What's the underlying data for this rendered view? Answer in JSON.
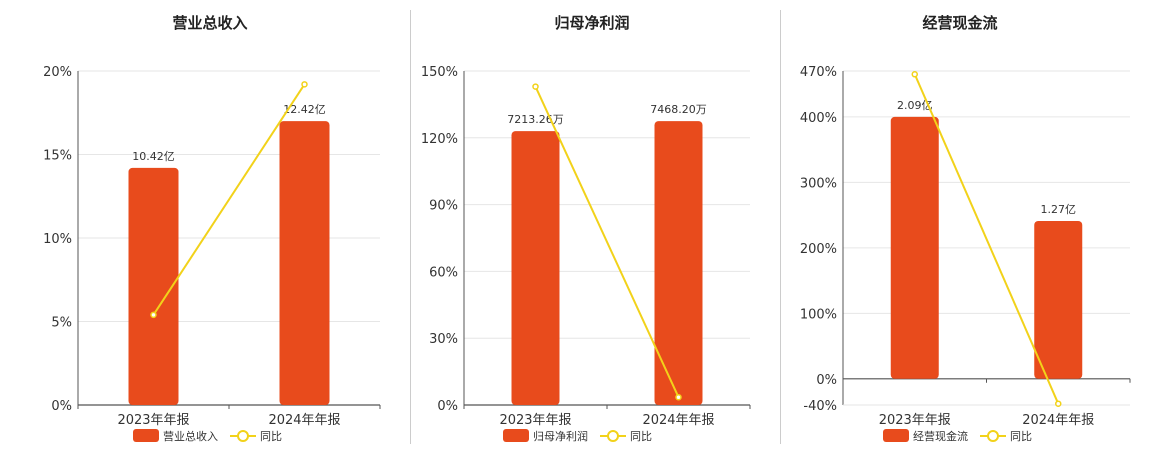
{
  "colors": {
    "bar": "#E84B1C",
    "line": "#F2D21A",
    "grid": "#e6e6e6",
    "axis": "#555555"
  },
  "chart_data": [
    {
      "type": "bar",
      "title": "营业总收入",
      "categories": [
        "2023年年报",
        "2024年年报"
      ],
      "series": [
        {
          "name": "营业总收入",
          "kind": "bar",
          "values": [
            14.2,
            17.0
          ],
          "labels": [
            "10.42亿",
            "12.42亿"
          ]
        },
        {
          "name": "同比",
          "kind": "line",
          "values": [
            5.4,
            19.2
          ]
        }
      ],
      "yticks": [
        "0%",
        "5%",
        "10%",
        "15%",
        "20%"
      ],
      "ylim": [
        0,
        20
      ],
      "legend": "bottom"
    },
    {
      "type": "bar",
      "title": "归母净利润",
      "categories": [
        "2023年年报",
        "2024年年报"
      ],
      "series": [
        {
          "name": "归母净利润",
          "kind": "bar",
          "values": [
            123,
            127.5
          ],
          "labels": [
            "7213.26万",
            "7468.20万"
          ]
        },
        {
          "name": "同比",
          "kind": "line",
          "values": [
            143,
            3.5
          ]
        }
      ],
      "yticks": [
        "0%",
        "30%",
        "60%",
        "90%",
        "120%",
        "150%"
      ],
      "ylim": [
        0,
        150
      ],
      "legend": "bottom"
    },
    {
      "type": "bar",
      "title": "经营现金流",
      "categories": [
        "2023年年报",
        "2024年年报"
      ],
      "series": [
        {
          "name": "经营现金流",
          "kind": "bar",
          "values": [
            400,
            241
          ],
          "labels": [
            "2.09亿",
            "1.27亿"
          ]
        },
        {
          "name": "同比",
          "kind": "line",
          "values": [
            465,
            -38
          ]
        }
      ],
      "yticks": [
        "-40%",
        "0%",
        "100%",
        "200%",
        "300%",
        "400%",
        "470%"
      ],
      "ylim": [
        -40,
        470
      ],
      "legend": "bottom"
    }
  ]
}
